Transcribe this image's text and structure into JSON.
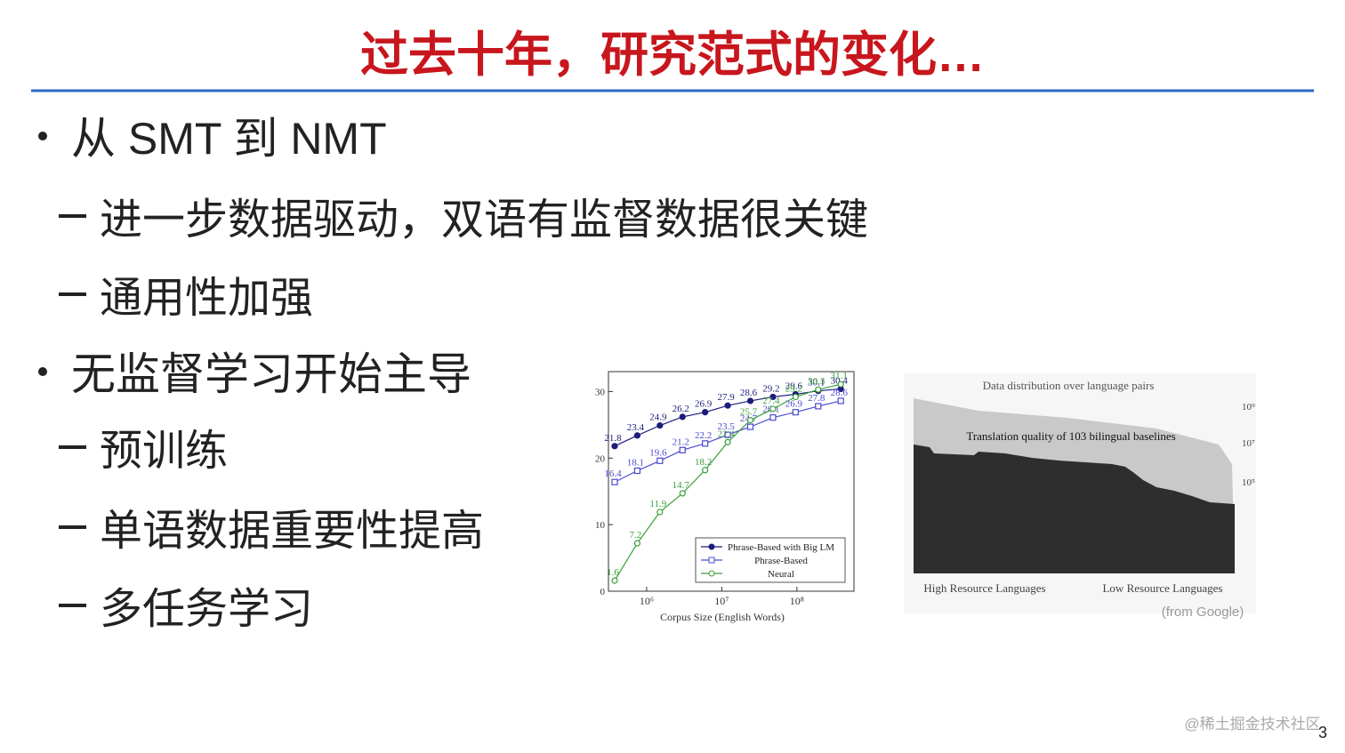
{
  "title": "过去十年，研究范式的变化…",
  "bullets": [
    {
      "text": "从 SMT 到 NMT",
      "sub": [
        "进一步数据驱动，双语有监督数据很关键",
        "通用性加强"
      ]
    },
    {
      "text": "无监督学习开始主导",
      "sub": [
        "预训练",
        "单语数据重要性提高",
        "多任务学习"
      ]
    }
  ],
  "chart_data": {
    "type": "line",
    "xlabel": "Corpus Size (English Words)",
    "log_x": true,
    "x": [
      375000,
      750000,
      1500000,
      3000000,
      6000000,
      12000000,
      24000000,
      48000000,
      96000000,
      192000000,
      384000000
    ],
    "xlim": [
      310000,
      575000000
    ],
    "xticks": [
      {
        "value": 1000000,
        "label": "10⁶"
      },
      {
        "value": 10000000,
        "label": "10⁷"
      },
      {
        "value": 100000000,
        "label": "10⁸"
      }
    ],
    "ylim": [
      0,
      33
    ],
    "yticks": [
      0,
      10,
      20,
      30
    ],
    "series": [
      {
        "name": "Phrase-Based with Big LM",
        "color": "#1c1c7a",
        "marker": "filled-circle",
        "values": [
          21.8,
          23.4,
          24.9,
          26.2,
          26.9,
          27.9,
          28.6,
          29.2,
          29.6,
          30.1,
          30.4
        ]
      },
      {
        "name": "Phrase-Based",
        "color": "#4a4ad0",
        "marker": "open-square",
        "values": [
          16.4,
          18.1,
          19.6,
          21.2,
          22.2,
          23.5,
          24.7,
          26.1,
          26.9,
          27.8,
          28.6
        ]
      },
      {
        "name": "Neural",
        "color": "#3a9f3a",
        "marker": "open-circle",
        "values": [
          1.6,
          7.2,
          11.9,
          14.7,
          18.2,
          22.4,
          25.7,
          27.4,
          29.2,
          30.3,
          31.1
        ]
      }
    ]
  },
  "figure_right": {
    "title": "Data distribution over language pairs",
    "subtitle": "Translation quality of 103 bilingual baselines",
    "axis_labels": [
      "10⁹",
      "10⁷",
      "10⁵"
    ],
    "left_label": "High Resource Languages",
    "right_label": "Low Resource Languages",
    "source": "(from Google)"
  },
  "footer": {
    "watermark": "@稀土掘金技术社区",
    "page_number": "3"
  }
}
